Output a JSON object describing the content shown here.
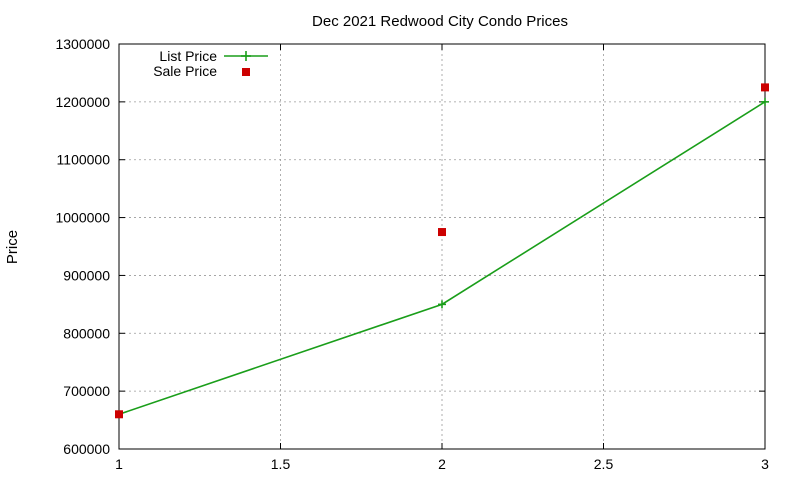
{
  "chart_data": {
    "type": "line",
    "title": "Dec 2021 Redwood City Condo Prices",
    "xlabel": "",
    "ylabel": "Price",
    "xlim": [
      1,
      3
    ],
    "ylim": [
      600000,
      1300000
    ],
    "x_ticks": [
      1,
      1.5,
      2,
      2.5,
      3
    ],
    "x_tick_labels": [
      "1",
      "1.5",
      "2",
      "2.5",
      "3"
    ],
    "y_ticks": [
      600000,
      700000,
      800000,
      900000,
      1000000,
      1100000,
      1200000,
      1300000
    ],
    "y_tick_labels": [
      "600000",
      "700000",
      "800000",
      "900000",
      "1000000",
      "1100000",
      "1200000",
      "1300000"
    ],
    "grid": true,
    "legend_position": "top-left",
    "series": [
      {
        "name": "List Price",
        "style": "line-with-plus-markers",
        "color": "#1a9e1a",
        "x": [
          1,
          2,
          3
        ],
        "y": [
          660000,
          850000,
          1200000
        ]
      },
      {
        "name": "Sale Price",
        "style": "square-points",
        "color": "#cc0000",
        "x": [
          1,
          2,
          3
        ],
        "y": [
          660000,
          975000,
          1225000
        ]
      }
    ]
  }
}
